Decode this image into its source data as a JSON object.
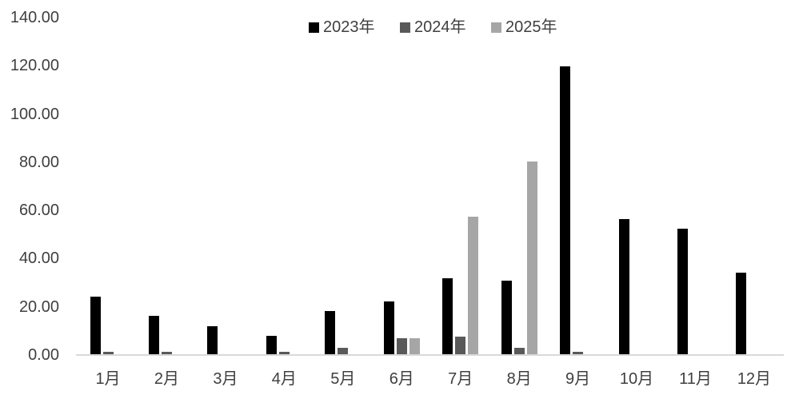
{
  "chart_data": {
    "type": "bar",
    "title": "",
    "xlabel": "",
    "ylabel": "",
    "categories": [
      "1月",
      "2月",
      "3月",
      "4月",
      "5月",
      "6月",
      "7月",
      "8月",
      "9月",
      "10月",
      "11月",
      "12月"
    ],
    "series": [
      {
        "name": "2023年",
        "color": "#000000",
        "values": [
          24,
          16,
          11.5,
          7.5,
          18,
          22,
          31.5,
          30.5,
          119.5,
          56,
          52,
          34
        ]
      },
      {
        "name": "2024年",
        "color": "#595959",
        "values": [
          1,
          1,
          0,
          1,
          2.5,
          6.8,
          7.3,
          2.5,
          1,
          0,
          0,
          0
        ]
      },
      {
        "name": "2025年",
        "color": "#a6a6a6",
        "values": [
          0,
          0,
          0,
          0,
          0,
          6.5,
          57,
          80,
          0,
          0,
          0,
          0
        ]
      }
    ],
    "ylim": [
      0,
      140
    ],
    "y_tick_step": 20,
    "y_tick_labels": [
      "0.00",
      "20.00",
      "40.00",
      "60.00",
      "80.00",
      "100.00",
      "120.00",
      "140.00"
    ],
    "grid": false,
    "legend_position": "top-center",
    "colors": {
      "background": "#ffffff",
      "axis_line": "#d9d9d9",
      "text": "#3f3f3f"
    }
  }
}
